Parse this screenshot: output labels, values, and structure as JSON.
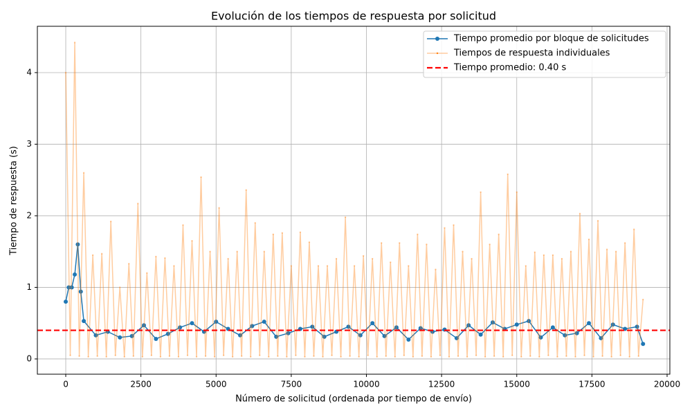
{
  "chart_data": {
    "type": "line",
    "title": "Evolución de los tiempos de respuesta por solicitud",
    "x_label": "Número de solicitud (ordenada por tiempo de envío)",
    "y_label": "Tiempo de respuesta (s)",
    "xlim": [
      -944,
      20092
    ],
    "ylim": [
      -0.213,
      4.647
    ],
    "xticks": [
      0,
      2500,
      5000,
      7500,
      10000,
      12500,
      15000,
      17500,
      20000
    ],
    "yticks": [
      0,
      1,
      2,
      3,
      4
    ],
    "grid": true,
    "legend": "upper right",
    "series": [
      {
        "name": "Tiempo promedio por bloque de solicitudes",
        "color": "#1f77b4",
        "marker": "o",
        "alpha": 1,
        "x": [
          0,
          100,
          200,
          300,
          400,
          500,
          600,
          1000,
          1400,
          1800,
          2200,
          2600,
          3000,
          3400,
          3800,
          4200,
          4600,
          5000,
          5400,
          5800,
          6200,
          6600,
          7000,
          7400,
          7800,
          8200,
          8600,
          9000,
          9400,
          9800,
          10200,
          10600,
          11000,
          11400,
          11800,
          12200,
          12600,
          13000,
          13400,
          13800,
          14200,
          14600,
          15000,
          15400,
          15800,
          16200,
          16600,
          17000,
          17400,
          17800,
          18200,
          18600,
          19000,
          19200
        ],
        "values": [
          0.8,
          1.0,
          1.0,
          1.18,
          1.6,
          0.94,
          0.53,
          0.33,
          0.38,
          0.3,
          0.32,
          0.47,
          0.28,
          0.35,
          0.44,
          0.5,
          0.38,
          0.52,
          0.42,
          0.33,
          0.46,
          0.52,
          0.31,
          0.36,
          0.42,
          0.45,
          0.31,
          0.38,
          0.45,
          0.33,
          0.5,
          0.32,
          0.44,
          0.27,
          0.43,
          0.38,
          0.41,
          0.29,
          0.47,
          0.34,
          0.51,
          0.42,
          0.48,
          0.53,
          0.3,
          0.44,
          0.33,
          0.36,
          0.5,
          0.29,
          0.48,
          0.42,
          0.45,
          0.21
        ]
      },
      {
        "name": "Tiempos de respuesta individuales",
        "color": "#ff7f0e",
        "marker": ".",
        "alpha": 0.4,
        "x": [
          0,
          150,
          300,
          450,
          600,
          750,
          900,
          1050,
          1200,
          1350,
          1500,
          1650,
          1800,
          1950,
          2100,
          2250,
          2400,
          2550,
          2700,
          2850,
          3000,
          3150,
          3300,
          3450,
          3600,
          3750,
          3900,
          4050,
          4200,
          4350,
          4500,
          4650,
          4800,
          4950,
          5100,
          5250,
          5400,
          5550,
          5700,
          5850,
          6000,
          6150,
          6300,
          6450,
          6600,
          6750,
          6900,
          7050,
          7200,
          7350,
          7500,
          7650,
          7800,
          7950,
          8100,
          8250,
          8400,
          8550,
          8700,
          8850,
          9000,
          9150,
          9300,
          9450,
          9600,
          9750,
          9900,
          10050,
          10200,
          10350,
          10500,
          10650,
          10800,
          10950,
          11100,
          11250,
          11400,
          11550,
          11700,
          11850,
          12000,
          12150,
          12300,
          12450,
          12600,
          12750,
          12900,
          13050,
          13200,
          13350,
          13500,
          13650,
          13800,
          13950,
          14100,
          14250,
          14400,
          14550,
          14700,
          14850,
          15000,
          15150,
          15300,
          15450,
          15600,
          15750,
          15900,
          16050,
          16200,
          16350,
          16500,
          16650,
          16800,
          16950,
          17100,
          17250,
          17400,
          17550,
          17700,
          17850,
          18000,
          18150,
          18300,
          18450,
          18600,
          18750,
          18900,
          19050,
          19200
        ],
        "values": [
          4.0,
          0.05,
          4.42,
          0.04,
          2.6,
          0.03,
          1.45,
          0.04,
          1.47,
          0.03,
          1.92,
          0.05,
          1.0,
          0.03,
          1.33,
          0.04,
          2.17,
          0.03,
          1.2,
          0.05,
          1.43,
          0.03,
          1.41,
          0.04,
          1.3,
          0.03,
          1.87,
          0.05,
          1.65,
          0.03,
          2.54,
          0.04,
          1.5,
          0.03,
          2.11,
          0.05,
          1.4,
          0.03,
          1.5,
          0.04,
          2.36,
          0.03,
          1.9,
          0.05,
          1.5,
          0.03,
          1.74,
          0.04,
          1.76,
          0.03,
          1.3,
          0.05,
          1.77,
          0.03,
          1.63,
          0.04,
          1.3,
          0.03,
          1.3,
          0.05,
          1.4,
          0.03,
          1.98,
          0.04,
          1.3,
          0.03,
          1.44,
          0.05,
          1.4,
          0.03,
          1.62,
          0.04,
          1.35,
          0.03,
          1.62,
          0.05,
          1.3,
          0.03,
          1.74,
          0.04,
          1.6,
          0.03,
          1.25,
          0.05,
          1.83,
          0.03,
          1.87,
          0.04,
          1.5,
          0.03,
          1.4,
          0.05,
          2.33,
          0.03,
          1.6,
          0.04,
          1.74,
          0.03,
          2.58,
          0.05,
          2.33,
          0.03,
          1.3,
          0.04,
          1.49,
          0.03,
          1.45,
          0.05,
          1.45,
          0.03,
          1.4,
          0.04,
          1.5,
          0.03,
          2.03,
          0.05,
          1.67,
          0.03,
          1.93,
          0.04,
          1.53,
          0.03,
          1.5,
          0.05,
          1.62,
          0.03,
          1.81,
          0.04,
          0.83
        ]
      }
    ],
    "hline": {
      "value": 0.4,
      "label": "Tiempo promedio: 0.40 s",
      "color": "#ff0000"
    }
  }
}
